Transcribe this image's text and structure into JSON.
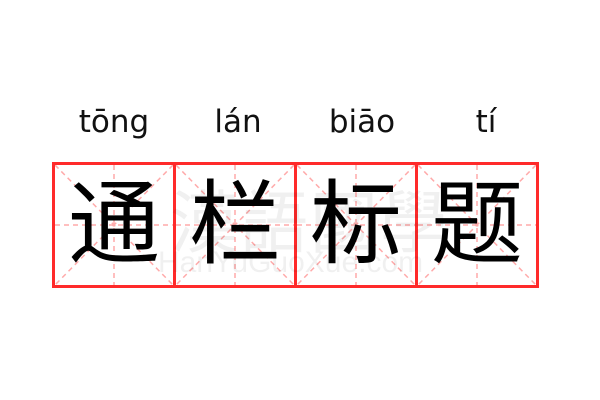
{
  "pinyin": [
    "tōng",
    "lán",
    "biāo",
    "tí"
  ],
  "characters": [
    "通",
    "栏",
    "标",
    "题"
  ],
  "watermark": {
    "chinese": "漢語國學",
    "latin": "HanYuGuoXue.com"
  },
  "colors": {
    "grid_border": "#ff2a2a",
    "grid_guides": "#ffaaaa",
    "text": "#000000"
  }
}
